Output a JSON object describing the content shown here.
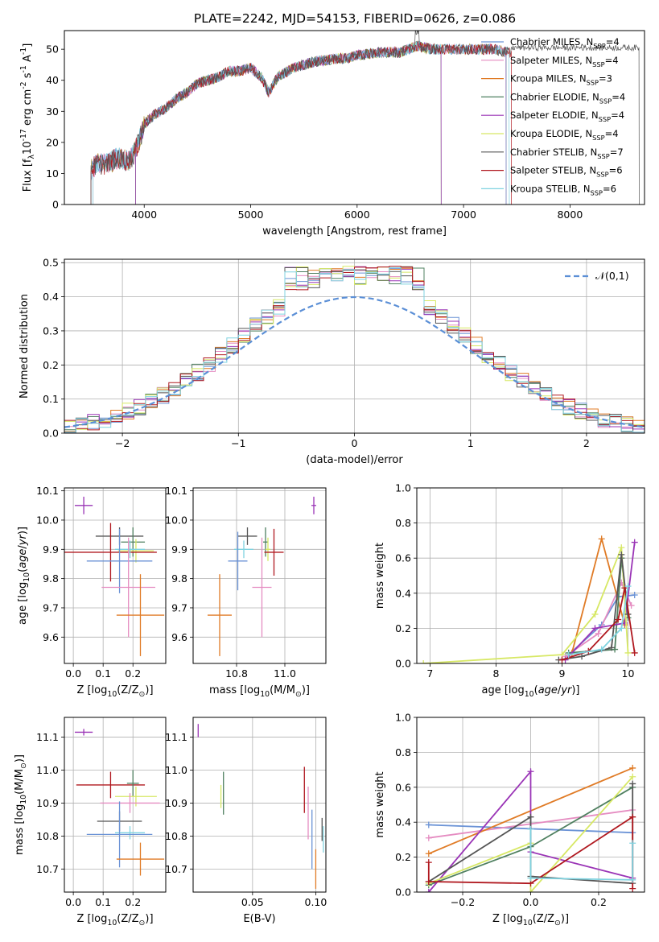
{
  "figure": {
    "title": "PLATE=2242, MJD=54153, FIBERID=0626, z=0.086"
  },
  "colors": {
    "Chabrier MILES": "#6b93d6",
    "Salpeter MILES": "#e58cc1",
    "Kroupa MILES": "#a88d2a",
    "Chabrier ELODIE": "#4f8060",
    "Salpeter ELODIE": "#9a34b6",
    "Kroupa ELODIE": "#d7e865",
    "Chabrier STELIB": "#555555",
    "Salpeter STELIB": "#b0181f",
    "Kroupa STELIB": "#7fd3e0",
    "orange": "#e07b26"
  },
  "chart_data": [
    {
      "id": "spectrum",
      "type": "line",
      "title": "PLATE=2242, MJD=54153, FIBERID=0626, z=0.086",
      "xlabel": "wavelength [Angstrom, rest frame]",
      "ylabel": "Flux [f$_\\lambda$10$^{-17}$ erg cm$^{-2}$ s$^{-1}$ A$^{-1}$]",
      "xlim": [
        3250,
        8700
      ],
      "ylim": [
        0,
        56
      ],
      "xticks": [
        4000,
        5000,
        6000,
        7000,
        8000
      ],
      "yticks": [
        0,
        10,
        20,
        30,
        40,
        50
      ],
      "legend_position": "upper right",
      "legend": [
        {
          "name": "Chabrier MILES",
          "nssp": "4"
        },
        {
          "name": "Salpeter MILES",
          "nssp": "4"
        },
        {
          "name": "Kroupa MILES",
          "nssp": "3"
        },
        {
          "name": "Chabrier ELODIE",
          "nssp": "4"
        },
        {
          "name": "Salpeter ELODIE",
          "nssp": "4"
        },
        {
          "name": "Kroupa ELODIE",
          "nssp": "4"
        },
        {
          "name": "Chabrier STELIB",
          "nssp": "7"
        },
        {
          "name": "Salpeter STELIB",
          "nssp": "6"
        },
        {
          "name": "Kroupa STELIB",
          "nssp": "6"
        }
      ],
      "continuum": {
        "x": [
          3500,
          3550,
          3650,
          3750,
          3850,
          3900,
          3950,
          4000,
          4100,
          4200,
          4300,
          4400,
          4500,
          4600,
          4700,
          4800,
          4900,
          5000,
          5100,
          5170,
          5250,
          5400,
          5600,
          5800,
          5900,
          6000,
          6200,
          6400,
          6563,
          6700,
          6900,
          7100,
          7300,
          7400
        ],
        "y": [
          11,
          13,
          13,
          15,
          14,
          16,
          20,
          26,
          29,
          31,
          34,
          36,
          39,
          40,
          41,
          43,
          43,
          44,
          41,
          36,
          41,
          44,
          46,
          47,
          47,
          48,
          49,
          49,
          51,
          50,
          50,
          50,
          50,
          49
        ]
      },
      "model_ranges": [
        {
          "model": "Chabrier MILES",
          "x": [
            3500,
            7400
          ]
        },
        {
          "model": "Salpeter MILES",
          "x": [
            3520,
            7400
          ]
        },
        {
          "model": "Kroupa MILES",
          "x": [
            3500,
            7400
          ]
        },
        {
          "model": "Chabrier ELODIE",
          "x": [
            3920,
            6790
          ]
        },
        {
          "model": "Salpeter ELODIE",
          "x": [
            3920,
            6790
          ]
        },
        {
          "model": "Kroupa ELODIE",
          "x": [
            3920,
            6790
          ]
        },
        {
          "model": "Chabrier STELIB",
          "x": [
            3500,
            8650
          ]
        },
        {
          "model": "Salpeter STELIB",
          "x": [
            3500,
            7450
          ]
        },
        {
          "model": "Kroupa STELIB",
          "x": [
            3520,
            7430
          ]
        }
      ]
    },
    {
      "id": "residuals",
      "type": "histogram",
      "xlabel": "(data-model)/error",
      "ylabel": "Normed distribution",
      "xlim": [
        -2.5,
        2.5
      ],
      "ylim": [
        0,
        0.51
      ],
      "xticks": [
        -2,
        -1,
        0,
        1,
        2
      ],
      "yticks": [
        0.0,
        0.1,
        0.2,
        0.3,
        0.4,
        0.5
      ],
      "bin_width": 0.1,
      "reference_curve": {
        "label": "$\\mathcal{N}(0,1)$",
        "type": "gaussian",
        "mean": 0,
        "sigma": 1
      },
      "legend_position": "upper right"
    },
    {
      "id": "age_vs_Z",
      "type": "errorbar",
      "xlabel": "Z [log$_{10}$($Z/Z_\\odot$)]",
      "ylabel": "age  [log$_{10}$($age/yr$)]",
      "xlim": [
        -0.03,
        0.31
      ],
      "ylim": [
        9.51,
        10.11
      ],
      "xticks": [
        0.0,
        0.1,
        0.2
      ],
      "yticks": [
        9.6,
        9.7,
        9.8,
        9.9,
        10.0,
        10.1
      ],
      "points": [
        {
          "model": "Salpeter ELODIE",
          "x": 0.035,
          "xerr": 0.03,
          "y": 10.05,
          "yerr": 0.03
        },
        {
          "model": "Chabrier STELIB",
          "x": 0.155,
          "xerr": 0.08,
          "y": 9.945,
          "yerr": 0.03
        },
        {
          "model": "Chabrier ELODIE",
          "x": 0.2,
          "xerr": 0.04,
          "y": 9.925,
          "yerr": 0.05
        },
        {
          "model": "Kroupa ELODIE",
          "x": 0.21,
          "xerr": 0.06,
          "y": 9.895,
          "yerr": 0.04
        },
        {
          "model": "Salpeter STELIB",
          "x": 0.125,
          "xerr": 0.155,
          "y": 9.89,
          "yerr": 0.1
        },
        {
          "model": "Kroupa STELIB",
          "x": 0.19,
          "xerr": 0.05,
          "y": 9.9,
          "yerr": 0.03
        },
        {
          "model": "Chabrier MILES",
          "x": 0.155,
          "xerr": 0.11,
          "y": 9.86,
          "yerr": 0.11
        },
        {
          "model": "Salpeter MILES",
          "x": 0.185,
          "xerr": 0.09,
          "y": 9.77,
          "yerr": 0.17
        },
        {
          "model": "orange",
          "x": 0.225,
          "xerr": 0.08,
          "y": 9.675,
          "yerr": 0.14
        }
      ]
    },
    {
      "id": "age_vs_mass",
      "type": "errorbar",
      "xlabel": "mass [log$_{10}$($M/M_\\odot$)]",
      "ylabel": "",
      "xlim": [
        10.62,
        11.17
      ],
      "ylim": [
        9.51,
        10.11
      ],
      "xticks": [
        10.8,
        11.0
      ],
      "yticks": [
        9.6,
        9.7,
        9.8,
        9.9,
        10.0,
        10.1
      ],
      "points": [
        {
          "model": "Salpeter ELODIE",
          "x": 11.12,
          "xerr": 0.01,
          "y": 10.05,
          "yerr": 0.03
        },
        {
          "model": "Chabrier STELIB",
          "x": 10.845,
          "xerr": 0.04,
          "y": 9.945,
          "yerr": 0.03
        },
        {
          "model": "Chabrier ELODIE",
          "x": 10.92,
          "xerr": 0.01,
          "y": 9.925,
          "yerr": 0.05
        },
        {
          "model": "Kroupa ELODIE",
          "x": 10.93,
          "xerr": 0.01,
          "y": 9.9,
          "yerr": 0.04
        },
        {
          "model": "Salpeter STELIB",
          "x": 10.955,
          "xerr": 0.04,
          "y": 9.89,
          "yerr": 0.08
        },
        {
          "model": "Kroupa STELIB",
          "x": 10.83,
          "xerr": 0.04,
          "y": 9.9,
          "yerr": 0.03
        },
        {
          "model": "Chabrier MILES",
          "x": 10.805,
          "xerr": 0.04,
          "y": 9.86,
          "yerr": 0.1
        },
        {
          "model": "Salpeter MILES",
          "x": 10.905,
          "xerr": 0.04,
          "y": 9.77,
          "yerr": 0.17
        },
        {
          "model": "orange",
          "x": 10.73,
          "xerr": 0.05,
          "y": 9.675,
          "yerr": 0.14
        }
      ]
    },
    {
      "id": "weight_vs_age",
      "type": "line",
      "xlabel": "age  [log$_{10}$($age/yr$)]",
      "ylabel": "mass weight",
      "xlim": [
        6.8,
        10.25
      ],
      "ylim": [
        0,
        1
      ],
      "xticks": [
        7,
        8,
        9,
        10
      ],
      "yticks": [
        0.0,
        0.2,
        0.4,
        0.6,
        0.8,
        1.0
      ],
      "series": [
        {
          "model": "Chabrier MILES",
          "x": [
            9.1,
            9.6,
            9.85,
            10.1
          ],
          "y": [
            0.05,
            0.22,
            0.38,
            0.39
          ]
        },
        {
          "model": "Salpeter MILES",
          "x": [
            9.05,
            9.55,
            9.9,
            10.05
          ],
          "y": [
            0.04,
            0.17,
            0.46,
            0.33
          ]
        },
        {
          "model": "orange",
          "x": [
            9.15,
            9.6,
            9.95
          ],
          "y": [
            0.06,
            0.71,
            0.22
          ]
        },
        {
          "model": "Chabrier ELODIE",
          "x": [
            9.1,
            9.8,
            9.9,
            10.0
          ],
          "y": [
            0.06,
            0.08,
            0.6,
            0.26
          ]
        },
        {
          "model": "Salpeter ELODIE",
          "x": [
            9.05,
            9.5,
            9.95,
            10.1
          ],
          "y": [
            0.02,
            0.2,
            0.23,
            0.69
          ]
        },
        {
          "model": "Kroupa ELODIE",
          "x": [
            6.9,
            9.0,
            9.5,
            9.9,
            10.0
          ],
          "y": [
            0.0,
            0.05,
            0.28,
            0.66,
            0.06
          ]
        },
        {
          "model": "Chabrier STELIB",
          "x": [
            8.95,
            9.3,
            9.75,
            9.9,
            10.0
          ],
          "y": [
            0.02,
            0.04,
            0.09,
            0.62,
            0.28
          ]
        },
        {
          "model": "Salpeter STELIB",
          "x": [
            9.0,
            9.4,
            9.85,
            9.95,
            10.1
          ],
          "y": [
            0.02,
            0.07,
            0.25,
            0.43,
            0.06
          ]
        },
        {
          "model": "Kroupa STELIB",
          "x": [
            9.1,
            9.6,
            9.9,
            10.0
          ],
          "y": [
            0.05,
            0.08,
            0.2,
            0.44
          ]
        }
      ]
    },
    {
      "id": "mass_vs_Z",
      "type": "errorbar",
      "xlabel": "Z [log$_{10}$($Z/Z_\\odot$)]",
      "ylabel": "mass [log$_{10}$($M/M_\\odot$)]",
      "xlim": [
        -0.03,
        0.31
      ],
      "ylim": [
        10.63,
        11.16
      ],
      "xticks": [
        0.0,
        0.1,
        0.2
      ],
      "yticks": [
        10.7,
        10.8,
        10.9,
        11.0,
        11.1
      ],
      "points": [
        {
          "model": "Salpeter ELODIE",
          "x": 0.035,
          "xerr": 0.03,
          "y": 11.115,
          "yerr": 0.01
        },
        {
          "model": "Salpeter STELIB",
          "x": 0.125,
          "xerr": 0.115,
          "y": 10.955,
          "yerr": 0.04
        },
        {
          "model": "Chabrier ELODIE",
          "x": 0.2,
          "xerr": 0.02,
          "y": 10.96,
          "yerr": 0.04
        },
        {
          "model": "Kroupa ELODIE",
          "x": 0.21,
          "xerr": 0.07,
          "y": 10.92,
          "yerr": 0.03
        },
        {
          "model": "Salpeter MILES",
          "x": 0.19,
          "xerr": 0.1,
          "y": 10.9,
          "yerr": 0.03
        },
        {
          "model": "Chabrier STELIB",
          "x": 0.155,
          "xerr": 0.075,
          "y": 10.845,
          "yerr": 0.03
        },
        {
          "model": "Kroupa STELIB",
          "x": 0.19,
          "xerr": 0.05,
          "y": 10.81,
          "yerr": 0.02
        },
        {
          "model": "Chabrier MILES",
          "x": 0.155,
          "xerr": 0.11,
          "y": 10.805,
          "yerr": 0.1
        },
        {
          "model": "orange",
          "x": 0.225,
          "xerr": 0.08,
          "y": 10.73,
          "yerr": 0.05
        }
      ]
    },
    {
      "id": "mass_vs_ebv",
      "type": "errorbar",
      "xlabel": "E(B-V)",
      "ylabel": "",
      "xlim": [
        0.003,
        0.108
      ],
      "ylim": [
        10.63,
        11.16
      ],
      "xticks": [
        0.05,
        0.1
      ],
      "yticks": [
        10.7,
        10.8,
        10.9,
        11.0,
        11.1
      ],
      "points": [
        {
          "model": "Salpeter ELODIE",
          "x": 0.007,
          "xerr": 0,
          "y": 11.12,
          "yerr": 0.02
        },
        {
          "model": "Kroupa ELODIE",
          "x": 0.025,
          "xerr": 0,
          "y": 10.92,
          "yerr": 0.035
        },
        {
          "model": "Chabrier ELODIE",
          "x": 0.027,
          "xerr": 0,
          "y": 10.93,
          "yerr": 0.065
        },
        {
          "model": "Salpeter STELIB",
          "x": 0.091,
          "xerr": 0,
          "y": 10.94,
          "yerr": 0.07
        },
        {
          "model": "Salpeter MILES",
          "x": 0.094,
          "xerr": 0,
          "y": 10.87,
          "yerr": 0.08
        },
        {
          "model": "Chabrier MILES",
          "x": 0.097,
          "xerr": 0,
          "y": 10.79,
          "yerr": 0.09
        },
        {
          "model": "orange",
          "x": 0.1,
          "xerr": 0,
          "y": 10.7,
          "yerr": 0.06
        },
        {
          "model": "Chabrier STELIB",
          "x": 0.105,
          "xerr": 0,
          "y": 10.82,
          "yerr": 0.035
        },
        {
          "model": "Kroupa STELIB",
          "x": 0.106,
          "xerr": 0,
          "y": 10.79,
          "yerr": 0.04
        }
      ]
    },
    {
      "id": "weight_vs_Z",
      "type": "line",
      "xlabel": "Z [log$_{10}$($Z/Z_\\odot$)]",
      "ylabel": "mass weight",
      "xlim": [
        -0.335,
        0.335
      ],
      "ylim": [
        0,
        1
      ],
      "xticks": [
        -0.2,
        0.0,
        0.2
      ],
      "yticks": [
        0.0,
        0.2,
        0.4,
        0.6,
        0.8,
        1.0
      ],
      "series": [
        {
          "model": "Chabrier MILES",
          "x": [
            -0.3,
            0.3
          ],
          "y": [
            0.385,
            0.34
          ]
        },
        {
          "model": "Salpeter MILES",
          "x": [
            -0.3,
            0.3
          ],
          "y": [
            0.31,
            0.47
          ]
        },
        {
          "model": "orange",
          "x": [
            -0.3,
            0.3
          ],
          "y": [
            0.22,
            0.71
          ]
        },
        {
          "model": "Chabrier ELODIE",
          "x": [
            -0.3,
            0.0,
            0.3
          ],
          "y": [
            0.04,
            0.26,
            0.6
          ]
        },
        {
          "model": "Salpeter ELODIE",
          "x": [
            -0.3,
            0.0,
            0.0,
            0.3
          ],
          "y": [
            0.0,
            0.69,
            0.23,
            0.08
          ]
        },
        {
          "model": "Kroupa ELODIE",
          "x": [
            -0.3,
            0.0,
            0.0,
            0.3
          ],
          "y": [
            0.05,
            0.28,
            0.0,
            0.66
          ]
        },
        {
          "model": "Chabrier STELIB",
          "x": [
            -0.3,
            0.0,
            0.0,
            0.3,
            0.3
          ],
          "y": [
            0.06,
            0.43,
            0.09,
            0.05,
            0.62
          ]
        },
        {
          "model": "Salpeter STELIB",
          "x": [
            -0.3,
            -0.3,
            0.0,
            0.3,
            0.3
          ],
          "y": [
            0.17,
            0.06,
            0.05,
            0.43,
            0.02
          ]
        },
        {
          "model": "Kroupa STELIB",
          "x": [
            0.0,
            0.0,
            0.3,
            0.3
          ],
          "y": [
            0.36,
            0.08,
            0.07,
            0.28
          ]
        }
      ]
    }
  ]
}
